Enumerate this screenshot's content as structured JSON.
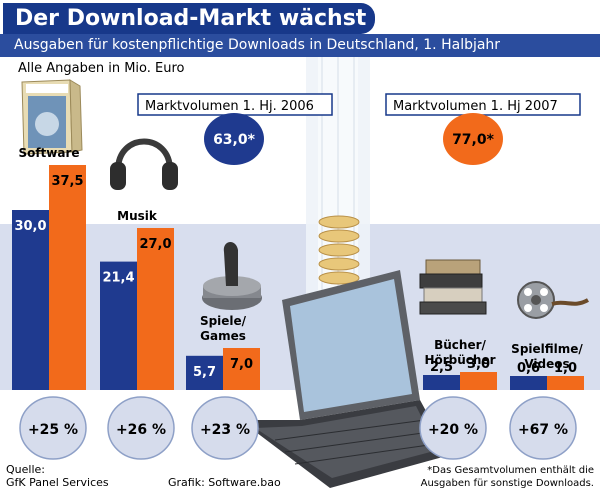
{
  "header": {
    "title": "Der Download-Markt wächst",
    "subtitle": "Ausgaben für kostenpflichtige Downloads in Deutschland, 1. Halbjahr"
  },
  "note": "Alle Angaben in Mio. Euro",
  "market": {
    "label_2006": "Marktvolumen 1. Hj. 2006",
    "value_2006": "63,0*",
    "label_2007": "Marktvolumen 1. Hj 2007",
    "value_2007": "77,0*"
  },
  "footer": {
    "source_label": "Quelle:",
    "source": "GfK Panel Services",
    "graphic": "Grafik: Software.bao",
    "footnote_line1": "*Das Gesamtvolumen enthält die",
    "footnote_line2": "Ausgaben für sonstige Downloads."
  },
  "colors": {
    "y2006": "#1f3a8f",
    "y2007": "#f26a1b",
    "navy": "#17388a",
    "bg_band": "#d6dcec"
  },
  "chart_data": {
    "type": "bar",
    "categories": [
      "Software",
      "Musik",
      "Spiele/ Games",
      "Bücher/ Hörbücher",
      "Spielfilme/ Videos"
    ],
    "category_lines": [
      [
        "Software"
      ],
      [
        "Musik"
      ],
      [
        "Spiele/",
        "Games"
      ],
      [
        "Bücher/",
        "Hörbücher"
      ],
      [
        "Spielfilme/",
        "Videos"
      ]
    ],
    "series": [
      {
        "values": [
          30.0,
          21.4,
          5.7,
          2.5,
          0.6
        ],
        "labels": [
          "30,0",
          "21,4",
          "5,7",
          "2,5",
          "0,6"
        ]
      },
      {
        "values": [
          37.5,
          27.0,
          7.0,
          3.0,
          1.0
        ],
        "labels": [
          "37,5",
          "27,0",
          "7,0",
          "3,0",
          "1,0"
        ]
      }
    ],
    "growth": [
      "+25 %",
      "+26 %",
      "+23 %",
      "+20 %",
      "+67 %"
    ],
    "units": "Mio. Euro",
    "icons": [
      "software-box-icon",
      "headphones-icon",
      "joystick-icon",
      "books-icon",
      "film-reel-icon"
    ]
  }
}
